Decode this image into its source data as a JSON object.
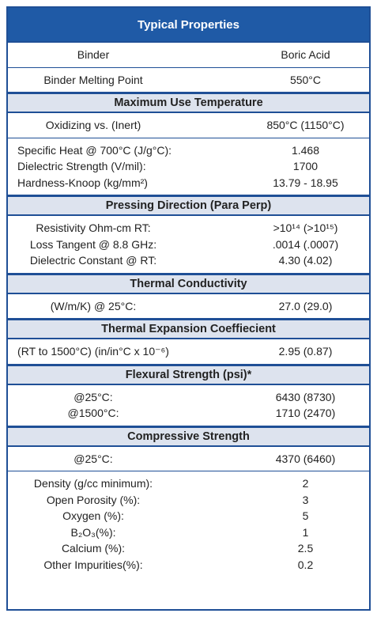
{
  "header": {
    "title": "Typical Properties"
  },
  "blocks": [
    {
      "rows": [
        [
          "Binder",
          "Boric Acid"
        ]
      ]
    },
    {
      "rows": [
        [
          "Binder Melting Point",
          "550°C"
        ]
      ]
    },
    {
      "heading": "Maximum Use Temperature"
    },
    {
      "rows": [
        [
          "Oxidizing vs. (Inert)",
          "850°C (1150°C)"
        ]
      ]
    },
    {
      "rows": [
        [
          "Specific Heat @ 700°C (J/g°C):",
          "1.468"
        ],
        [
          "Dielectric Strength (V/mil):",
          "1700"
        ],
        [
          "Hardness-Knoop (kg/mm²)",
          "13.79 - 18.95"
        ]
      ]
    },
    {
      "heading": "Pressing Direction (Para Perp)"
    },
    {
      "rows": [
        [
          "Resistivity Ohm-cm RT:",
          ">10¹⁴ (>10¹⁵)"
        ],
        [
          "Loss Tangent @ 8.8 GHz:",
          ".0014 (.0007)"
        ],
        [
          "Dielectric Constant @ RT:",
          "4.30 (4.02)"
        ]
      ]
    },
    {
      "heading": "Thermal Conductivity"
    },
    {
      "rows": [
        [
          "(W/m/K) @ 25°C:",
          "27.0 (29.0)"
        ]
      ]
    },
    {
      "heading": "Thermal Expansion Coeffiecient"
    },
    {
      "rows": [
        [
          "(RT to 1500°C) (in/in°C x 10⁻⁶)",
          "2.95 (0.87)"
        ]
      ]
    },
    {
      "heading": "Flexural Strength (psi)*"
    },
    {
      "rows": [
        [
          "@25°C:",
          "6430 (8730)"
        ],
        [
          "@1500°C:",
          "1710 (2470)"
        ]
      ]
    },
    {
      "heading": "Compressive Strength"
    },
    {
      "rows": [
        [
          "@25°C:",
          "4370 (6460)"
        ]
      ]
    },
    {
      "rows": [
        [
          "Density (g/cc minimum):",
          "2"
        ],
        [
          "Open Porosity (%):",
          "3"
        ],
        [
          "Oxygen (%):",
          "5"
        ],
        [
          "B₂O₃(%):",
          "1"
        ],
        [
          "Calcium (%):",
          "2.5"
        ],
        [
          "Other Impurities(%):",
          "0.2"
        ]
      ]
    }
  ]
}
